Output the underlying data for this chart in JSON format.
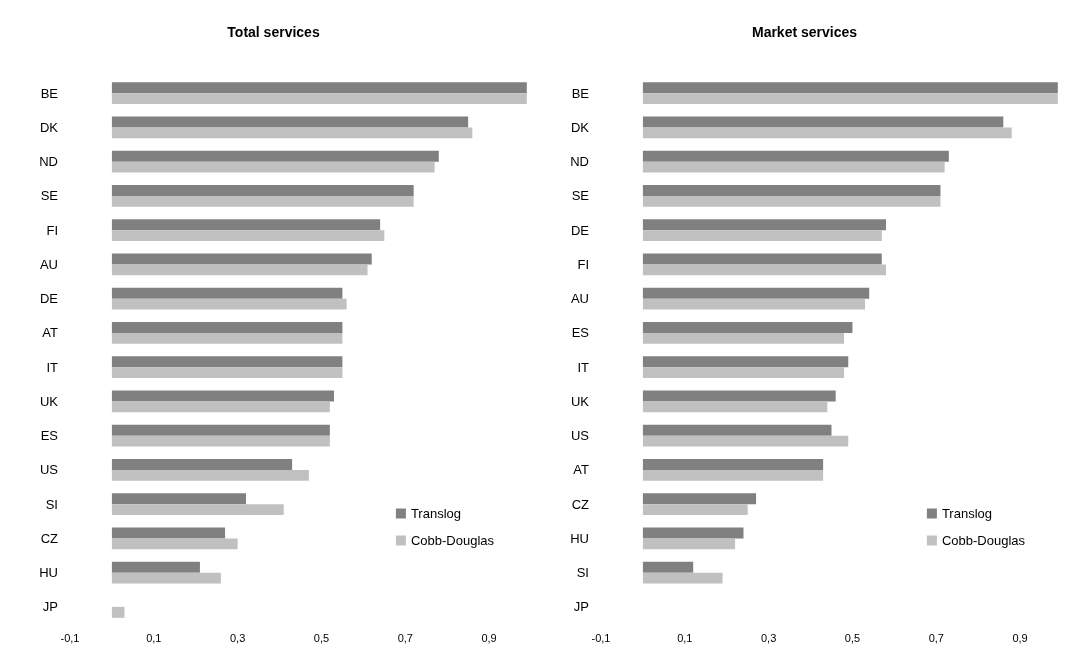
{
  "chart_data": [
    {
      "type": "bar",
      "title": "Total services",
      "orientation": "horizontal",
      "categories": [
        "BE",
        "DK",
        "ND",
        "SE",
        "FI",
        "AU",
        "DE",
        "AT",
        "IT",
        "UK",
        "ES",
        "US",
        "SI",
        "CZ",
        "HU",
        "JP"
      ],
      "series": [
        {
          "name": "Translog",
          "color": "#808080",
          "values": [
            0.99,
            0.85,
            0.78,
            0.72,
            0.64,
            0.62,
            0.55,
            0.55,
            0.55,
            0.53,
            0.52,
            0.43,
            0.32,
            0.27,
            0.21,
            0.0
          ]
        },
        {
          "name": "Cobb-Douglas",
          "color": "#c0c0c0",
          "values": [
            0.99,
            0.86,
            0.77,
            0.72,
            0.65,
            0.61,
            0.56,
            0.55,
            0.55,
            0.52,
            0.52,
            0.47,
            0.41,
            0.3,
            0.26,
            0.03
          ]
        }
      ],
      "xlim": [
        -0.1,
        1.0
      ],
      "xticks": [
        {
          "value": -0.1,
          "label": "-0,1"
        },
        {
          "value": 0.1,
          "label": "0,1"
        },
        {
          "value": 0.3,
          "label": "0,3"
        },
        {
          "value": 0.5,
          "label": "0,5"
        },
        {
          "value": 0.7,
          "label": "0,7"
        },
        {
          "value": 0.9,
          "label": "0,9"
        }
      ],
      "grid": false,
      "legend": "bottom right"
    },
    {
      "type": "bar",
      "title": "Market services",
      "orientation": "horizontal",
      "categories": [
        "BE",
        "DK",
        "ND",
        "SE",
        "DE",
        "FI",
        "AU",
        "ES",
        "IT",
        "UK",
        "US",
        "AT",
        "CZ",
        "HU",
        "SI",
        "JP"
      ],
      "series": [
        {
          "name": "Translog",
          "color": "#808080",
          "values": [
            0.99,
            0.86,
            0.73,
            0.71,
            0.58,
            0.57,
            0.54,
            0.5,
            0.49,
            0.46,
            0.45,
            0.43,
            0.27,
            0.24,
            0.12,
            0.0
          ]
        },
        {
          "name": "Cobb-Douglas",
          "color": "#c0c0c0",
          "values": [
            0.99,
            0.88,
            0.72,
            0.71,
            0.57,
            0.58,
            0.53,
            0.48,
            0.48,
            0.44,
            0.49,
            0.43,
            0.25,
            0.22,
            0.19,
            0.0
          ]
        }
      ],
      "xlim": [
        -0.1,
        1.0
      ],
      "xticks": [
        {
          "value": -0.1,
          "label": "-0,1"
        },
        {
          "value": 0.1,
          "label": "0,1"
        },
        {
          "value": 0.3,
          "label": "0,3"
        },
        {
          "value": 0.5,
          "label": "0,5"
        },
        {
          "value": 0.7,
          "label": "0,7"
        },
        {
          "value": 0.9,
          "label": "0,9"
        }
      ],
      "grid": false,
      "legend": "bottom right"
    }
  ]
}
